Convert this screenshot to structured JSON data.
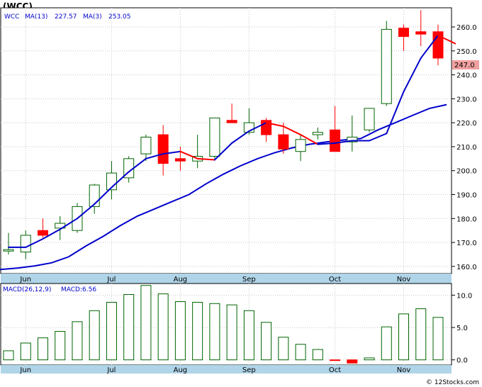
{
  "symbol_title": "(WCC)",
  "legend": {
    "symbol": "WCC",
    "ma_fast_label": "MA(13)",
    "ma_fast_value": "227.57",
    "ma_slow_label": "MA(3)",
    "ma_slow_value": "253.05",
    "macd_label": "MACD(26,12,9)",
    "macd_value_label": "MACD:6.56"
  },
  "last_price_label": "247.0",
  "watermark": "© 12Stocks.com",
  "colors": {
    "up_candle_fill": "#ffffff",
    "up_candle_stroke": "#006400",
    "down_candle": "#ff0000",
    "ma13": "#0000cc",
    "ma3_up": "#0000cc",
    "ma3_down": "#ff0000",
    "axis_strip": "#b0d4e8",
    "legend_text": "#0000cc",
    "macd_pos": "#006400",
    "macd_neg": "#ff0000",
    "price_tag": "#f0a0a0"
  },
  "chart_data": [
    {
      "type": "candlestick",
      "title": "(WCC)",
      "ylim": [
        157,
        268
      ],
      "yticks": [
        160,
        170,
        180,
        190,
        200,
        210,
        220,
        230,
        240,
        250,
        260
      ],
      "xlabels": [
        {
          "label": "Jun",
          "week": 1
        },
        {
          "label": "Jul",
          "week": 6
        },
        {
          "label": "Aug",
          "week": 10
        },
        {
          "label": "Sep",
          "week": 14
        },
        {
          "label": "Oct",
          "week": 19
        },
        {
          "label": "Nov",
          "week": 23
        }
      ],
      "weeks": 26,
      "candles": [
        {
          "o": 166.5,
          "h": 174.0,
          "l": 165.0,
          "c": 167.0
        },
        {
          "o": 166.0,
          "h": 175.0,
          "l": 163.0,
          "c": 173.0
        },
        {
          "o": 175.0,
          "h": 180.0,
          "l": 172.0,
          "c": 173.0
        },
        {
          "o": 176.0,
          "h": 181.0,
          "l": 171.0,
          "c": 178.0
        },
        {
          "o": 175.0,
          "h": 186.5,
          "l": 174.0,
          "c": 185.0
        },
        {
          "o": 185.0,
          "h": 194.5,
          "l": 182.0,
          "c": 194.0
        },
        {
          "o": 192.0,
          "h": 204.0,
          "l": 188.0,
          "c": 199.0
        },
        {
          "o": 197.0,
          "h": 206.0,
          "l": 195.0,
          "c": 205.0
        },
        {
          "o": 207.0,
          "h": 215.0,
          "l": 204.0,
          "c": 214.0
        },
        {
          "o": 215.0,
          "h": 219.0,
          "l": 198.0,
          "c": 203.0
        },
        {
          "o": 205.0,
          "h": 210.0,
          "l": 200.0,
          "c": 204.0
        },
        {
          "o": 204.0,
          "h": 215.0,
          "l": 201.0,
          "c": 206.0
        },
        {
          "o": 206.0,
          "h": 222.0,
          "l": 205.0,
          "c": 222.0
        },
        {
          "o": 221.0,
          "h": 228.0,
          "l": 220.0,
          "c": 220.0
        },
        {
          "o": 216.0,
          "h": 226.0,
          "l": 215.0,
          "c": 220.0
        },
        {
          "o": 221.0,
          "h": 222.0,
          "l": 212.0,
          "c": 215.0
        },
        {
          "o": 215.0,
          "h": 220.0,
          "l": 207.0,
          "c": 209.0
        },
        {
          "o": 208.0,
          "h": 215.0,
          "l": 204.0,
          "c": 213.0
        },
        {
          "o": 215.0,
          "h": 218.0,
          "l": 213.0,
          "c": 216.0
        },
        {
          "o": 217.0,
          "h": 227.0,
          "l": 208.0,
          "c": 208.0
        },
        {
          "o": 212.0,
          "h": 223.0,
          "l": 208.0,
          "c": 214.0
        },
        {
          "o": 217.0,
          "h": 226.0,
          "l": 216.0,
          "c": 226.0
        },
        {
          "o": 228.0,
          "h": 262.5,
          "l": 227.0,
          "c": 259.0
        },
        {
          "o": 259.5,
          "h": 261.0,
          "l": 250.0,
          "c": 256.0
        },
        {
          "o": 258.0,
          "h": 267.0,
          "l": 252.0,
          "c": 257.0
        },
        {
          "o": 258.0,
          "h": 261.0,
          "l": 244.0,
          "c": 247.0
        }
      ],
      "ma13": [
        158.7,
        159.3,
        160.2,
        161.5,
        164.0,
        168.5,
        172.5,
        177.0,
        181.0,
        184.0,
        187.0,
        190.0,
        194.5,
        198.5,
        202.0,
        205.0,
        207.5,
        209.5,
        211.0,
        212.0,
        212.8,
        213.4,
        217.0,
        220.0,
        223.0,
        226.0,
        227.57
      ],
      "ma3": [
        168.0,
        168.0,
        171.5,
        175.5,
        180.0,
        186.0,
        193.0,
        199.5,
        205.0,
        207.0,
        208.0,
        205.0,
        204.5,
        211.5,
        216.5,
        220.0,
        218.5,
        215.0,
        211.0,
        211.5,
        212.5,
        212.5,
        215.5,
        233.0,
        247.0,
        256.5,
        253.05
      ],
      "ma_segments_colored": true
    },
    {
      "type": "bar",
      "title": "MACD(26,12,9)",
      "ylim": [
        -0.8,
        11.8
      ],
      "yticks": [
        0.0,
        5.0,
        10.0
      ],
      "values": [
        1.4,
        2.6,
        3.4,
        4.4,
        5.9,
        7.6,
        8.9,
        10.1,
        11.5,
        10.2,
        9.0,
        8.9,
        8.7,
        8.5,
        7.6,
        5.8,
        3.5,
        2.4,
        1.6,
        -0.1,
        -0.5,
        0.3,
        5.1,
        7.1,
        7.9,
        6.56
      ]
    }
  ]
}
